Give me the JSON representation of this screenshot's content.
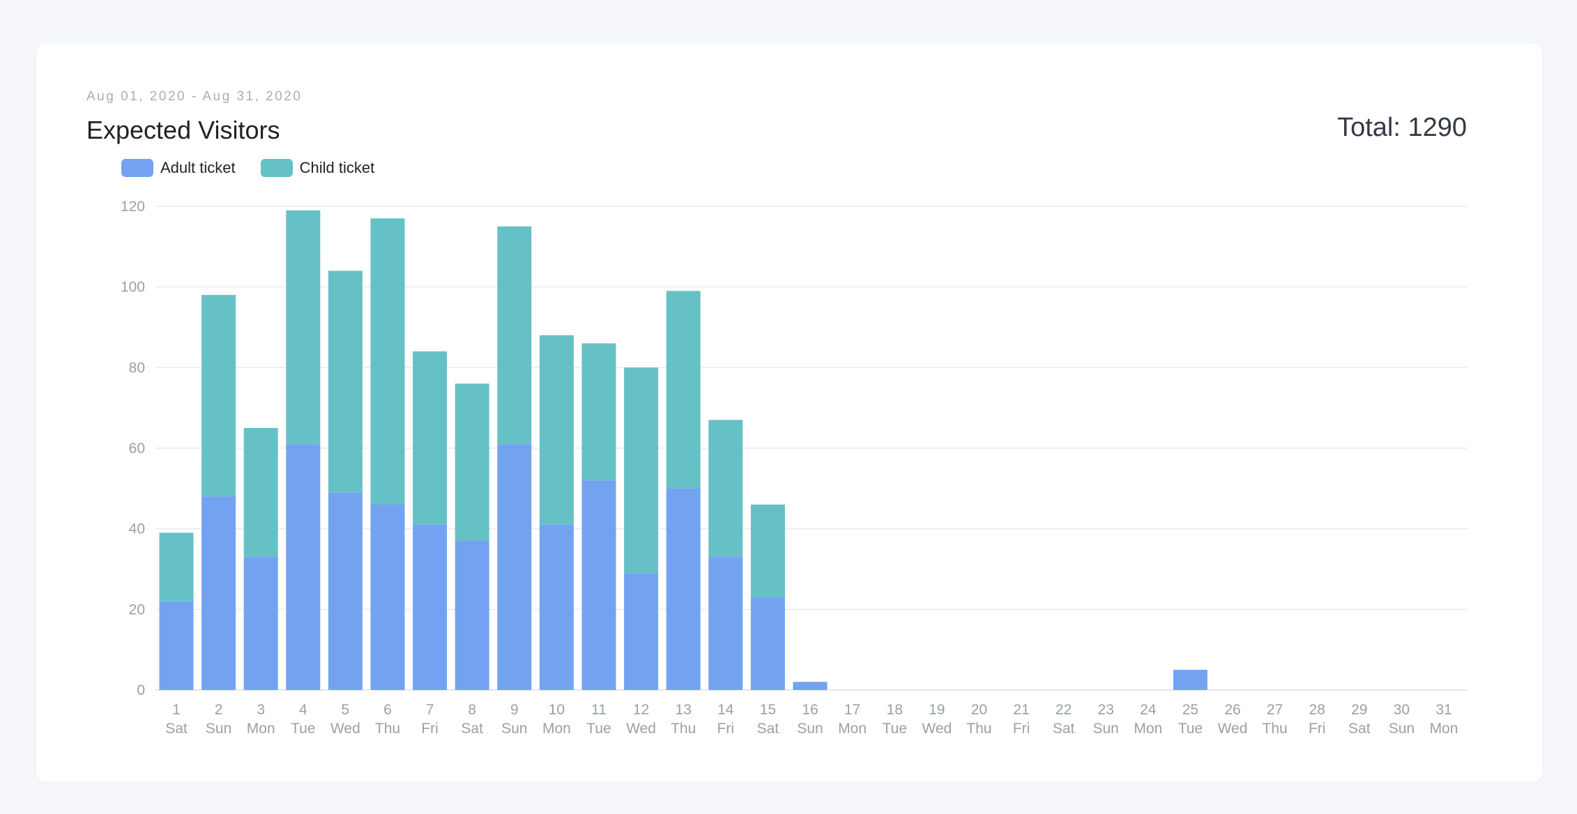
{
  "header": {
    "date_range": "Aug 01, 2020 - Aug 31, 2020",
    "title": "Expected Visitors",
    "total": "Total: 1290"
  },
  "chart_data": {
    "type": "bar",
    "stacked": true,
    "title": "Expected Visitors",
    "categories": [
      "1",
      "2",
      "3",
      "4",
      "5",
      "6",
      "7",
      "8",
      "9",
      "10",
      "11",
      "12",
      "13",
      "14",
      "15",
      "16",
      "17",
      "18",
      "19",
      "20",
      "21",
      "22",
      "23",
      "24",
      "25",
      "26",
      "27",
      "28",
      "29",
      "30",
      "31"
    ],
    "weekdays": [
      "Sat",
      "Sun",
      "Mon",
      "Tue",
      "Wed",
      "Thu",
      "Fri",
      "Sat",
      "Sun",
      "Mon",
      "Tue",
      "Wed",
      "Thu",
      "Fri",
      "Sat",
      "Sun",
      "Mon",
      "Tue",
      "Wed",
      "Thu",
      "Fri",
      "Sat",
      "Sun",
      "Mon",
      "Tue",
      "Wed",
      "Thu",
      "Fri",
      "Sat",
      "Sun",
      "Mon"
    ],
    "series": [
      {
        "name": "Adult ticket",
        "color": "#73a3f0",
        "values": [
          22,
          48,
          33,
          61,
          49,
          46,
          41,
          37,
          61,
          41,
          52,
          29,
          50,
          33,
          23,
          2,
          0,
          0,
          0,
          0,
          0,
          0,
          0,
          0,
          5,
          0,
          0,
          0,
          0,
          0,
          0
        ]
      },
      {
        "name": "Child ticket",
        "color": "#66c1c6",
        "values": [
          17,
          50,
          32,
          58,
          55,
          71,
          43,
          39,
          54,
          47,
          34,
          51,
          49,
          34,
          23,
          0,
          0,
          0,
          0,
          0,
          0,
          0,
          0,
          0,
          0,
          0,
          0,
          0,
          0,
          0,
          0
        ]
      }
    ],
    "ylim": [
      0,
      120
    ],
    "yticks": [
      0,
      20,
      40,
      60,
      80,
      100,
      120
    ],
    "grid": true,
    "legend_position": "top-left"
  }
}
